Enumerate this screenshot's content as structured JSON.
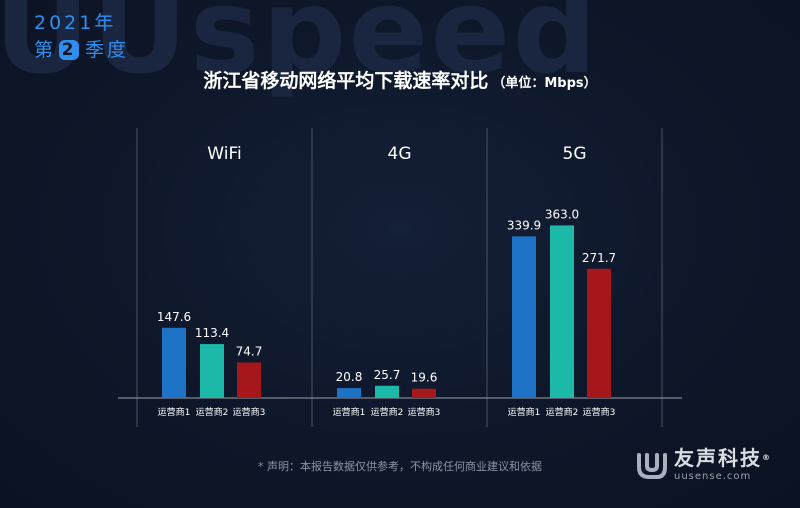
{
  "watermark": "UUspeed",
  "period": {
    "year": "2021年",
    "quarter_prefix": "第",
    "quarter_num": "2",
    "quarter_suffix": "季度"
  },
  "title": "浙江省移动网络平均下载速率对比",
  "unit": "（单位：Mbps）",
  "footnote": "* 声明：本报告数据仅供参考，不构成任何商业建议和依据",
  "logo": {
    "name": "友声科技",
    "reg": "®",
    "url": "uusense.com"
  },
  "colors": {
    "carrier1": "#1f73c6",
    "carrier2": "#1cb9a9",
    "carrier3": "#a6171b",
    "axis": "#9aa0ad",
    "text": "#ffffff"
  },
  "chart_data": {
    "type": "bar",
    "title": "浙江省移动网络平均下载速率对比",
    "unit": "Mbps",
    "groups": [
      "WiFi",
      "4G",
      "5G"
    ],
    "categories": [
      "运营商1",
      "运营商2",
      "运营商3"
    ],
    "values": [
      [
        147.6,
        113.4,
        74.7
      ],
      [
        20.8,
        25.7,
        19.6
      ],
      [
        339.9,
        363.0,
        271.7
      ]
    ],
    "value_labels": [
      [
        "147.6",
        "113.4",
        "74.7"
      ],
      [
        "20.8",
        "25.7",
        "19.6"
      ],
      [
        "339.9",
        "363.0",
        "271.7"
      ]
    ],
    "grid": false
  }
}
